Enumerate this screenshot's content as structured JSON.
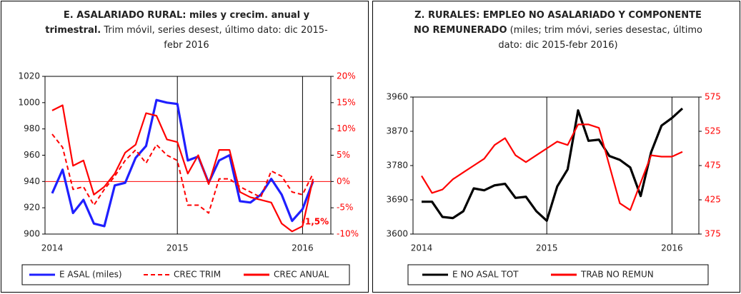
{
  "chart_data": [
    {
      "type": "line",
      "title": "E. ASALARIADO RURAL: miles y crecim. anual y trimestral.",
      "subtitle": "Trim móvil, series desest, último dato: dic 2015-febr 2016",
      "categories": [
        "2014",
        null,
        null,
        null,
        null,
        null,
        null,
        null,
        null,
        null,
        null,
        null,
        "2015",
        null,
        null,
        null,
        null,
        null,
        null,
        null,
        null,
        null,
        null,
        null,
        "2016",
        null
      ],
      "ylim": [
        900,
        1020
      ],
      "yticks": [
        900,
        920,
        940,
        960,
        980,
        1000,
        1020
      ],
      "y2lim": [
        -10,
        20
      ],
      "y2ticks": [
        {
          "value": -10,
          "label": "-10%"
        },
        {
          "value": -5,
          "label": "-5%"
        },
        {
          "value": 0,
          "label": "0%"
        },
        {
          "value": 5,
          "label": "5%"
        },
        {
          "value": 10,
          "label": "10%"
        },
        {
          "value": 15,
          "label": "15%"
        },
        {
          "value": 20,
          "label": "20%"
        }
      ],
      "annotation": "-1,5%",
      "series": [
        {
          "name": "E ASAL (miles)",
          "color": "#1f1fff",
          "style": "solid",
          "values": [
            931,
            949,
            916,
            926,
            908,
            906,
            937,
            939,
            958,
            967,
            1002,
            1000,
            999,
            956,
            959,
            939,
            956,
            960,
            925,
            924,
            930,
            942,
            930,
            910,
            919,
            940
          ]
        },
        {
          "name": "CREC TRIM",
          "color": "#ff0000",
          "style": "dashed",
          "axis": "y2",
          "values": [
            9,
            6.5,
            -1.5,
            -1,
            -4.5,
            -1.5,
            1,
            4,
            6,
            3.5,
            7,
            5,
            4,
            -4.5,
            -4.5,
            -6,
            0.5,
            0.5,
            -1,
            -2,
            -3,
            2,
            1,
            -2,
            -2.5,
            1.5
          ]
        },
        {
          "name": "CREC ANUAL",
          "color": "#ff0000",
          "style": "solid",
          "axis": "y2",
          "values": [
            13.5,
            14.5,
            3,
            4,
            -2.5,
            -1,
            1.5,
            5.5,
            7,
            13,
            12.5,
            8,
            7.5,
            1.5,
            5,
            -0.5,
            6,
            6,
            -2,
            -3,
            -3.5,
            -4,
            -8,
            -9.5,
            -8.5,
            0.5
          ]
        }
      ]
    },
    {
      "type": "line",
      "title": "Z. RURALES: EMPLEO NO ASALARIADO Y COMPONENTE NO REMUNERADO",
      "subtitle": "(miles; trim móvi, series desestac, último dato: dic 2015-febr 2016)",
      "categories": [
        "2014",
        null,
        null,
        null,
        null,
        null,
        null,
        null,
        null,
        null,
        null,
        null,
        "2015",
        null,
        null,
        null,
        null,
        null,
        null,
        null,
        null,
        null,
        null,
        null,
        "2016",
        null
      ],
      "ylim": [
        3600,
        3960
      ],
      "yticks": [
        3600,
        3690,
        3780,
        3870,
        3960
      ],
      "y2lim": [
        375,
        575
      ],
      "y2ticks": [
        375,
        425,
        475,
        525,
        575
      ],
      "series": [
        {
          "name": "E NO ASAL TOT",
          "color": "#000000",
          "style": "solid",
          "values": [
            3685,
            3685,
            3645,
            3642,
            3660,
            3720,
            3715,
            3728,
            3732,
            3695,
            3698,
            3660,
            3635,
            3725,
            3770,
            3925,
            3845,
            3848,
            3805,
            3795,
            3775,
            3700,
            3815,
            3885,
            3905,
            3930
          ]
        },
        {
          "name": "TRAB NO REMUN",
          "color": "#ff0000",
          "style": "solid",
          "axis": "y2",
          "values": [
            460,
            435,
            440,
            455,
            465,
            475,
            485,
            505,
            515,
            490,
            480,
            490,
            500,
            510,
            505,
            535,
            535,
            530,
            475,
            420,
            410,
            450,
            490,
            488,
            488,
            495
          ]
        }
      ]
    }
  ]
}
